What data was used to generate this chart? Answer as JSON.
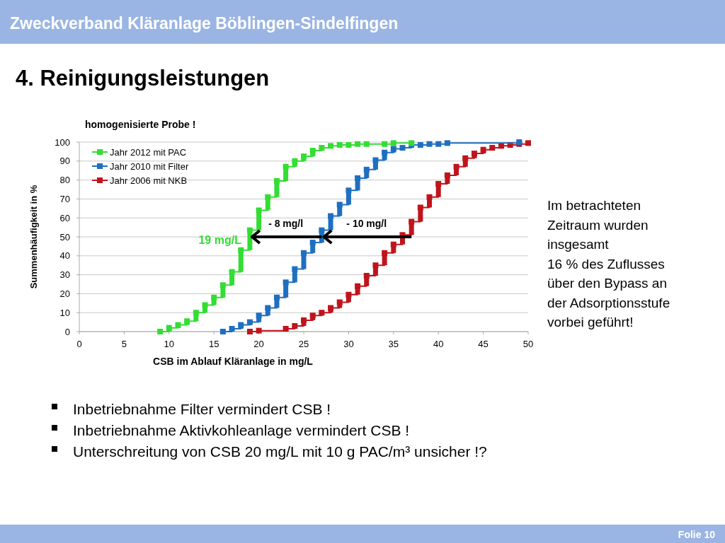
{
  "chart_data": {
    "type": "step",
    "title": "homogenisierte Probe !",
    "xlabel": "CSB im Ablauf Kläranlage in mg/L",
    "ylabel": "Summenhäufigkeit in %",
    "xlim": [
      0,
      50
    ],
    "xticks": [
      0,
      5,
      10,
      15,
      20,
      25,
      30,
      35,
      40,
      45,
      50
    ],
    "ylim": [
      0,
      100
    ],
    "yticks": [
      0,
      10,
      20,
      30,
      40,
      50,
      60,
      70,
      80,
      90,
      100
    ],
    "grid": "y",
    "legend": "top left",
    "marker": "square",
    "series": [
      {
        "name": "Jahr 2012 mit PAC",
        "color": "#33dd33",
        "x": [
          9,
          10,
          11,
          12,
          13,
          14,
          15,
          16,
          17,
          18,
          19,
          20,
          21,
          22,
          23,
          24,
          25,
          26,
          27,
          28,
          29,
          30,
          31,
          32,
          34,
          35,
          37
        ],
        "values": [
          0,
          2,
          3.5,
          5.5,
          10,
          14,
          18,
          24.5,
          31.5,
          43,
          53.5,
          64,
          71,
          79.5,
          87,
          90,
          92.5,
          95.5,
          97,
          98,
          98.5,
          98.5,
          99,
          99,
          99,
          99.5,
          99.5
        ]
      },
      {
        "name": "Jahr 2010 mit Filter",
        "color": "#1f6fc0",
        "x": [
          16,
          17,
          18,
          19,
          20,
          21,
          22,
          23,
          24,
          25,
          26,
          27,
          28,
          29,
          30,
          31,
          32,
          33,
          34,
          35,
          36,
          37,
          38,
          39,
          40,
          41,
          49
        ],
        "values": [
          0,
          1.5,
          3.5,
          5,
          8.5,
          12.5,
          18,
          26,
          33,
          41.5,
          47,
          53.5,
          61,
          67,
          74.5,
          81,
          85.5,
          90.5,
          94.5,
          96.5,
          97,
          98.5,
          98.5,
          99,
          99,
          99.5,
          100
        ]
      },
      {
        "name": "Jahr 2006 mit NKB",
        "color": "#c0141c",
        "x": [
          19,
          20,
          23,
          24,
          25,
          26,
          27,
          28,
          29,
          30,
          31,
          32,
          33,
          34,
          35,
          36,
          37,
          38,
          39,
          40,
          41,
          42,
          43,
          44,
          45,
          46,
          47,
          48,
          49,
          50
        ],
        "values": [
          0,
          0.5,
          1.5,
          3,
          6,
          8.5,
          10,
          12.5,
          15.5,
          19.5,
          24,
          29.5,
          35,
          41.5,
          46,
          51,
          58,
          65.5,
          71,
          78,
          82.5,
          87,
          91.5,
          94,
          96,
          97,
          98,
          98.5,
          99,
          99.5
        ]
      }
    ],
    "annotations": [
      {
        "text": "19 mg/L",
        "x": 19,
        "y": 50
      },
      {
        "text": "- 8 mg/l",
        "x": 27,
        "y": 50
      },
      {
        "text": "- 10 mg/l",
        "x": 37,
        "y": 50
      },
      "Zweckverband Kläranlage Böblingen-Sindelfingen",
      "4. Reinigungsleistungen",
      "Im betrachteten\nZeitraum wurden\ninsgesamt\n16 % des Zuflusses\nüber den Bypass an\nder Adsorptionsstufe\nvorbei geführt!",
      "Inbetriebnahme Filter vermindert CSB !",
      "Inbetriebnahme Aktivkohleanlage vermindert CSB !",
      "Unterschreitung von CSB 20 mg/L mit 10 g PAC/m³ unsicher !?",
      "Folie 10"
    ]
  }
}
